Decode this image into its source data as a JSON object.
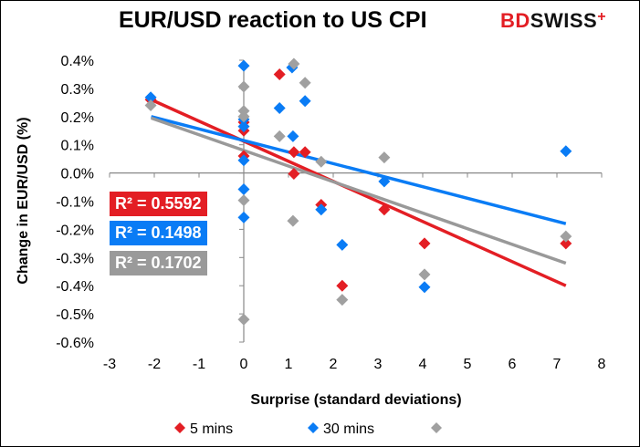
{
  "logo": {
    "text_bd": "BD",
    "text_swiss": "SWISS",
    "plus": "+"
  },
  "chart_data": {
    "type": "scatter",
    "title": "EUR/USD reaction to US CPI",
    "xlabel": "Surprise (standard deviations)",
    "ylabel": "Change in EUR/USD  (%)",
    "xlim": [
      -3,
      8
    ],
    "ylim": [
      -0.6,
      0.4
    ],
    "x_ticks": [
      "-3",
      "-2",
      "-1",
      "0",
      "1",
      "2",
      "3",
      "4",
      "5",
      "6",
      "7",
      "8"
    ],
    "y_ticks": [
      "0.4%",
      "0.3%",
      "0.2%",
      "0.1%",
      "0.0%",
      "-0.1%",
      "-0.2%",
      "-0.3%",
      "-0.4%",
      "-0.5%",
      "-0.6%"
    ],
    "grid": false,
    "legend_position": "bottom",
    "series": [
      {
        "name": "5 mins",
        "color": "#e31e24",
        "r2_label": "R² = 0.5592",
        "points": [
          [
            -2.08,
            0.26
          ],
          [
            0.8,
            0.35
          ],
          [
            0,
            0.18
          ],
          [
            0,
            0.15
          ],
          [
            0,
            0.06
          ],
          [
            1.12,
            0.074
          ],
          [
            1.37,
            0.074
          ],
          [
            1.12,
            -0.003
          ],
          [
            1.73,
            -0.113
          ],
          [
            3.14,
            -0.13
          ],
          [
            4.04,
            -0.25
          ],
          [
            2.2,
            -0.4
          ],
          [
            7.2,
            -0.25
          ]
        ],
        "trendline": [
          [
            -2.07,
            0.26
          ],
          [
            7.2,
            -0.4
          ]
        ]
      },
      {
        "name": "30 mins",
        "color": "#0a7cf5",
        "r2_label": "R² = 0.1498",
        "points": [
          [
            -2.08,
            0.268
          ],
          [
            0,
            0.38
          ],
          [
            0,
            0.19
          ],
          [
            0,
            0.165
          ],
          [
            0,
            0.045
          ],
          [
            0,
            -0.058
          ],
          [
            0,
            -0.158
          ],
          [
            1.08,
            0.374
          ],
          [
            0.8,
            0.23
          ],
          [
            1.37,
            0.255
          ],
          [
            1.1,
            0.13
          ],
          [
            1.73,
            -0.13
          ],
          [
            2.2,
            -0.255
          ],
          [
            3.14,
            -0.03
          ],
          [
            4.04,
            -0.405
          ],
          [
            7.2,
            0.077
          ]
        ],
        "trendline": [
          [
            -2.07,
            0.2
          ],
          [
            7.2,
            -0.18
          ]
        ]
      },
      {
        "name": "",
        "color": "#a0a0a0",
        "r2_label": "R² = 0.1702",
        "points": [
          [
            -2.08,
            0.24
          ],
          [
            1.12,
            0.387
          ],
          [
            1.37,
            0.32
          ],
          [
            0,
            0.306
          ],
          [
            0,
            0.22
          ],
          [
            0,
            0.2
          ],
          [
            0,
            -0.097
          ],
          [
            0,
            -0.52
          ],
          [
            0.8,
            0.13
          ],
          [
            1.73,
            0.04
          ],
          [
            3.14,
            0.055
          ],
          [
            1.1,
            -0.17
          ],
          [
            2.2,
            -0.45
          ],
          [
            4.04,
            -0.36
          ],
          [
            7.2,
            -0.225
          ]
        ],
        "trendline": [
          [
            -2.07,
            0.195
          ],
          [
            7.2,
            -0.32
          ]
        ]
      }
    ]
  }
}
